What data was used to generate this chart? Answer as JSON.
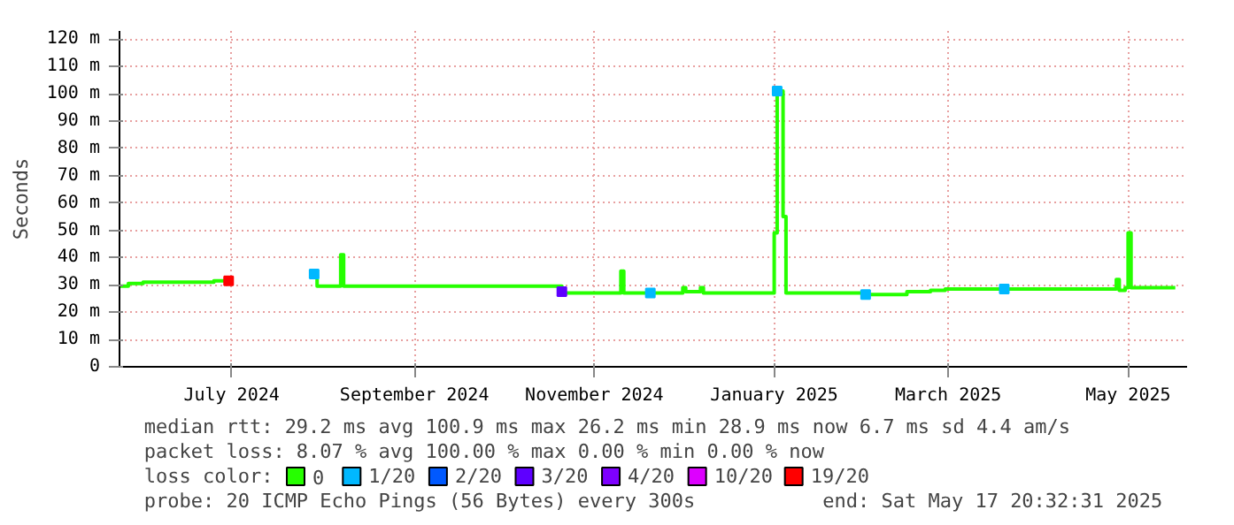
{
  "chart_data": {
    "type": "step",
    "ylabel": "Seconds",
    "xlim": [
      "2024-05-24",
      "2025-05-21"
    ],
    "xticks": [
      {
        "value": "2024-07-01",
        "label": "July 2024"
      },
      {
        "value": "2024-09-01",
        "label": "September 2024"
      },
      {
        "value": "2024-11-01",
        "label": "November 2024"
      },
      {
        "value": "2025-01-01",
        "label": "January 2025"
      },
      {
        "value": "2025-03-01",
        "label": "March 2025"
      },
      {
        "value": "2025-05-01",
        "label": "May 2025"
      }
    ],
    "ylim": [
      0,
      123
    ],
    "yticks": [
      0,
      {
        "value": 10,
        "label": "10 m"
      },
      {
        "value": 20,
        "label": "20 m"
      },
      {
        "value": 30,
        "label": "30 m"
      },
      {
        "value": 40,
        "label": "40 m"
      },
      {
        "value": 50,
        "label": "50 m"
      },
      {
        "value": 60,
        "label": "60 m"
      },
      {
        "value": 70,
        "label": "70 m"
      },
      {
        "value": 80,
        "label": "80 m"
      },
      {
        "value": 90,
        "label": "90 m"
      },
      {
        "value": 100,
        "label": "100 m"
      },
      {
        "value": 110,
        "label": "110 m"
      },
      {
        "value": 120,
        "label": "120 m"
      }
    ],
    "grid": true,
    "legend": "bottom",
    "legend_title": "loss color:",
    "series": [
      {
        "name": "0",
        "color": "#26ff00",
        "x": [
          "2024-05-24",
          "2024-05-27",
          "2024-06-01",
          "2024-06-15",
          "2024-06-25",
          "2024-06-30",
          "2024-07-01",
          "2024-07-29",
          "2024-07-30",
          "2024-08-07",
          "2024-08-08",
          "2024-09-15",
          "2024-10-20",
          "2024-10-21",
          "2024-11-09",
          "2024-11-10",
          "2024-11-11",
          "2024-11-30",
          "2024-12-01",
          "2024-12-02",
          "2024-12-07",
          "2024-12-08",
          "2024-12-31",
          "2025-01-01",
          "2025-01-02",
          "2025-01-04",
          "2025-01-05",
          "2025-02-01",
          "2025-02-15",
          "2025-02-23",
          "2025-02-28",
          "2025-04-22",
          "2025-04-27",
          "2025-04-28",
          "2025-04-30",
          "2025-05-01",
          "2025-05-02",
          "2025-05-17"
        ],
        "values": [
          29.5,
          30.5,
          31,
          31,
          31.5,
          31.5,
          null,
          34,
          29.5,
          41,
          29.5,
          29.5,
          29.5,
          27,
          27,
          35,
          27,
          27,
          29,
          27.5,
          29,
          27,
          27,
          49,
          101,
          55,
          27,
          26.5,
          27.5,
          28,
          28.5,
          28.5,
          32,
          28,
          29,
          49,
          29,
          29
        ]
      },
      {
        "name": "1/20",
        "color": "#00b8ff",
        "type": "scatter",
        "marker": "square",
        "x": [
          "2024-07-29",
          "2024-11-20",
          "2025-01-02",
          "2025-02-01",
          "2025-03-20"
        ],
        "values": [
          34,
          27,
          101,
          26.5,
          28.5
        ]
      },
      {
        "name": "2/20",
        "color": "#0059ff",
        "type": "scatter",
        "marker": "square"
      },
      {
        "name": "3/20",
        "color": "#5e00ff",
        "type": "scatter",
        "marker": "square",
        "x": [
          "2024-10-21"
        ],
        "values": [
          27.5
        ]
      },
      {
        "name": "4/20",
        "color": "#7e00ff",
        "type": "scatter",
        "marker": "square"
      },
      {
        "name": "10/20",
        "color": "#dd00ff",
        "type": "scatter",
        "marker": "square"
      },
      {
        "name": "19/20",
        "color": "#ff0000",
        "type": "scatter",
        "marker": "square",
        "x": [
          "2024-06-30"
        ],
        "values": [
          31.5
        ]
      }
    ],
    "annotations": [
      "median rtt:  29.2 ms avg  100.9 ms max  26.2 ms min  28.9 ms now  6.7 ms sd  4.4   am/s",
      "packet loss: 8.07 % avg  100.00 % max  0.00 % min  0.00 % now",
      "probe:       20 ICMP Echo Pings (56 Bytes) every 300s",
      "end: Sat May 17 20:32:31 2025"
    ]
  }
}
